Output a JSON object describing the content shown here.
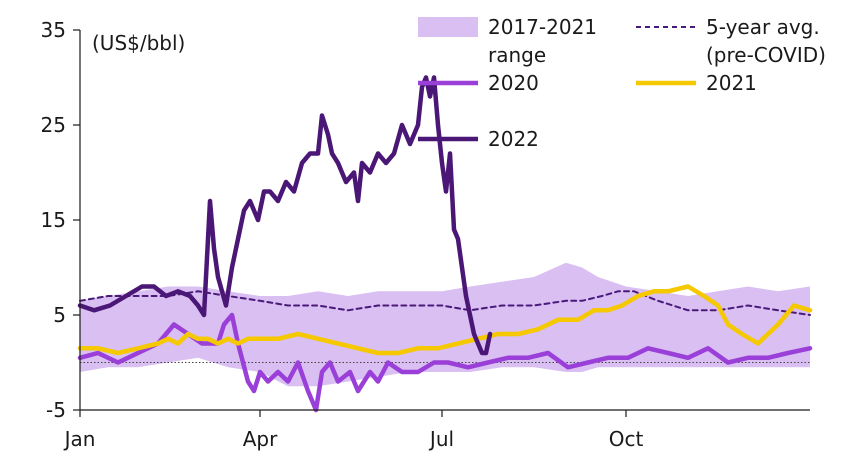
{
  "chart_data": {
    "type": "line",
    "ylabel": "(US$/bbl)",
    "ylim": [
      -5,
      35
    ],
    "yticks": [
      -5,
      5,
      15,
      25,
      35
    ],
    "xlim": [
      1,
      366
    ],
    "xticks": [
      {
        "label": "Jan",
        "day": 1
      },
      {
        "label": "Apr",
        "day": 91
      },
      {
        "label": "Jul",
        "day": 182
      },
      {
        "label": "Oct",
        "day": 274
      }
    ],
    "grid": false,
    "zero_line": "dotted",
    "legend_placement": "top",
    "legend": [
      {
        "key": "range",
        "label_lines": [
          "2017-2021",
          "range"
        ]
      },
      {
        "key": "avg",
        "label_lines": [
          "5-year avg.",
          "(pre-COVID)"
        ]
      },
      {
        "key": "s2020",
        "label_lines": [
          "2020"
        ]
      },
      {
        "key": "s2021",
        "label_lines": [
          "2021"
        ]
      },
      {
        "key": "s2022",
        "label_lines": [
          "2022"
        ]
      }
    ],
    "colors": {
      "range": "#d9bff2",
      "avg": "#4a1a7a",
      "s2020": "#9a3fd8",
      "s2021": "#f5c800",
      "s2022": "#4b1776",
      "axis": "#1a1a1a"
    },
    "range": {
      "x": [
        1,
        15,
        30,
        45,
        60,
        75,
        91,
        105,
        120,
        135,
        150,
        165,
        182,
        196,
        212,
        228,
        244,
        252,
        260,
        274,
        290,
        305,
        320,
        335,
        350,
        366
      ],
      "low": [
        -1,
        -0.5,
        -0.5,
        0,
        0.5,
        -0.5,
        -1,
        -2.5,
        -2.5,
        -2,
        -1.5,
        -1,
        -1,
        -1,
        -0.5,
        -0.5,
        -1,
        -1,
        -0.5,
        -0.5,
        -0.5,
        -0.5,
        -0.5,
        -0.5,
        -0.5,
        -0.5
      ],
      "high": [
        6.5,
        7,
        7.5,
        8,
        8,
        7.5,
        7,
        7,
        7.5,
        7,
        7.5,
        7.5,
        7.5,
        8,
        8.5,
        9,
        10.5,
        10,
        9,
        8,
        7.5,
        7,
        7.5,
        8,
        7.5,
        8
      ]
    },
    "series": [
      {
        "name": "5-year avg. (pre-COVID)",
        "key": "avg",
        "x": [
          1,
          15,
          30,
          45,
          60,
          75,
          91,
          105,
          120,
          135,
          150,
          165,
          182,
          196,
          212,
          228,
          244,
          252,
          262,
          270,
          278,
          290,
          305,
          320,
          335,
          350,
          366
        ],
        "y": [
          6.5,
          7,
          7,
          7,
          7.5,
          7,
          6.5,
          6,
          6,
          5.5,
          6,
          6,
          6,
          5.5,
          6,
          6,
          6.5,
          6.5,
          7,
          7.5,
          7.5,
          6.5,
          5.5,
          5.5,
          6,
          5.5,
          5
        ]
      },
      {
        "name": "2020",
        "key": "s2020",
        "x": [
          1,
          10,
          20,
          30,
          40,
          48,
          55,
          62,
          70,
          73,
          77,
          80,
          85,
          88,
          91,
          95,
          100,
          105,
          110,
          115,
          119,
          122,
          126,
          130,
          136,
          140,
          146,
          150,
          155,
          162,
          170,
          178,
          185,
          195,
          205,
          215,
          225,
          235,
          245,
          255,
          265,
          275,
          285,
          295,
          305,
          315,
          325,
          335,
          345,
          355,
          366
        ],
        "y": [
          0.5,
          1,
          0,
          1,
          2,
          4,
          3,
          2,
          2,
          4,
          5,
          2,
          -2,
          -3,
          -1,
          -2,
          -1,
          -2,
          0,
          -3,
          -5,
          -1,
          0,
          -2,
          -1,
          -3,
          -1,
          -2,
          0,
          -1,
          -1,
          0,
          0,
          -0.5,
          0,
          0.5,
          0.5,
          1,
          -0.5,
          0,
          0.5,
          0.5,
          1.5,
          1,
          0.5,
          1.5,
          0,
          0.5,
          0.5,
          1,
          1.5
        ]
      },
      {
        "name": "2021",
        "key": "s2021",
        "x": [
          1,
          10,
          20,
          30,
          40,
          45,
          50,
          55,
          60,
          65,
          70,
          75,
          80,
          85,
          91,
          100,
          110,
          120,
          130,
          140,
          150,
          160,
          170,
          180,
          190,
          200,
          210,
          220,
          230,
          240,
          250,
          258,
          265,
          272,
          280,
          288,
          295,
          305,
          313,
          320,
          325,
          332,
          340,
          350,
          358,
          366
        ],
        "y": [
          1.5,
          1.5,
          1,
          1.5,
          2,
          2.5,
          2,
          3,
          2.5,
          2.5,
          2,
          2.5,
          2,
          2.5,
          2.5,
          2.5,
          3,
          2.5,
          2,
          1.5,
          1,
          1,
          1.5,
          1.5,
          2,
          2.5,
          3,
          3,
          3.5,
          4.5,
          4.5,
          5.5,
          5.5,
          6,
          7,
          7.5,
          7.5,
          8,
          7,
          6,
          4,
          3,
          2,
          4,
          6,
          5.5
        ]
      },
      {
        "name": "2022",
        "key": "s2022",
        "x": [
          1,
          8,
          16,
          24,
          32,
          38,
          44,
          50,
          56,
          60,
          63,
          66,
          68,
          70,
          74,
          77,
          80,
          83,
          86,
          90,
          93,
          96,
          100,
          104,
          108,
          112,
          116,
          120,
          122,
          125,
          127,
          130,
          134,
          138,
          140,
          142,
          146,
          150,
          154,
          158,
          162,
          166,
          170,
          172,
          174,
          176,
          178,
          180,
          182,
          184,
          186,
          188,
          190,
          192,
          194,
          196,
          198,
          200,
          202,
          204,
          206
        ],
        "y": [
          6,
          5.5,
          6,
          7,
          8,
          8,
          7,
          7.5,
          7,
          6,
          5,
          17,
          12,
          9,
          6,
          10,
          13,
          16,
          17,
          15,
          18,
          18,
          17,
          19,
          18,
          21,
          22,
          22,
          26,
          24,
          22,
          21,
          19,
          20,
          17,
          21,
          20,
          22,
          21,
          22,
          25,
          23,
          25,
          29,
          30,
          28,
          30,
          25,
          21,
          18,
          22,
          14,
          13,
          10,
          7,
          5,
          3,
          2,
          1,
          1,
          3
        ]
      }
    ]
  }
}
